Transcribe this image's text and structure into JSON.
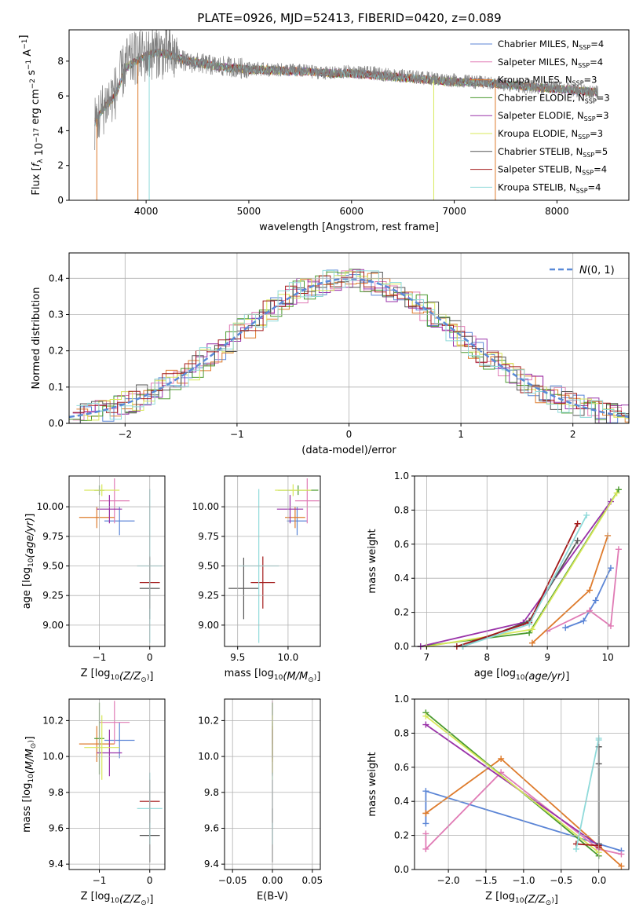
{
  "chart_data": [
    {
      "type": "line",
      "id": "spectrum",
      "title": "PLATE=0926, MJD=52413, FIBERID=0420, z=0.089",
      "xlabel": "wavelength [Angstrom, rest frame]",
      "ylabel": "Flux [f_λ 10^-17 erg cm^-2 s^-1 A^-1]",
      "xlim": [
        3250,
        8700
      ],
      "ylim": [
        0,
        9.8
      ],
      "xticks": [
        4000,
        5000,
        6000,
        7000,
        8000
      ],
      "yticks": [
        0,
        2,
        4,
        6,
        8
      ],
      "grid": false,
      "legend_position": "upper-right",
      "data_series": {
        "name": "",
        "color": "#808080",
        "x": [
          3500,
          3600,
          3700,
          3800,
          3900,
          4000,
          4100,
          4200,
          4300,
          4400,
          4500,
          4600,
          4700,
          4800,
          4900,
          5000,
          5200,
          5400,
          5600,
          5800,
          6000,
          6200,
          6400,
          6600,
          6800,
          7000,
          7200,
          7400,
          7600,
          7800,
          8000,
          8200,
          8400
        ],
        "y": [
          4.4,
          5.5,
          6.2,
          7.8,
          8.2,
          8.3,
          8.6,
          8.4,
          8.3,
          7.9,
          7.9,
          7.8,
          7.7,
          7.7,
          7.6,
          7.6,
          7.5,
          7.5,
          7.4,
          7.3,
          7.4,
          7.3,
          7.2,
          7.1,
          7.0,
          6.9,
          6.8,
          6.7,
          6.6,
          6.5,
          6.5,
          6.3,
          6.2
        ]
      },
      "model": {
        "x": [
          3500,
          3600,
          3700,
          3800,
          3900,
          4000,
          4100,
          4200,
          4300,
          4400,
          4500,
          4600,
          4700,
          4800,
          4900,
          5000,
          5200,
          5400,
          5600,
          5800,
          6000,
          6200,
          6400,
          6600,
          6800,
          7000,
          7200,
          7400,
          7600,
          7800,
          8000,
          8200,
          8400
        ],
        "y": [
          4.5,
          5.4,
          6.0,
          7.6,
          8.0,
          8.3,
          8.5,
          8.4,
          8.2,
          8.0,
          7.9,
          7.8,
          7.7,
          7.6,
          7.6,
          7.5,
          7.5,
          7.4,
          7.4,
          7.3,
          7.3,
          7.2,
          7.1,
          7.0,
          6.9,
          6.8,
          6.8,
          6.7,
          6.6,
          6.5,
          6.4,
          6.3,
          6.2
        ]
      },
      "legend": [
        {
          "label": "Chabrier MILES, N",
          "sub": "SSP",
          "suffix": "=4"
        },
        {
          "label": "Salpeter MILES, N",
          "sub": "SSP",
          "suffix": "=4"
        },
        {
          "label": "Kroupa MILES, N",
          "sub": "SSP",
          "suffix": "=3"
        },
        {
          "label": "Chabrier ELODIE, N",
          "sub": "SSP",
          "suffix": "=3"
        },
        {
          "label": "Salpeter ELODIE, N",
          "sub": "SSP",
          "suffix": "=3"
        },
        {
          "label": "Kroupa ELODIE, N",
          "sub": "SSP",
          "suffix": "=3"
        },
        {
          "label": "Chabrier STELIB, N",
          "sub": "SSP",
          "suffix": "=5"
        },
        {
          "label": "Salpeter STELIB, N",
          "sub": "SSP",
          "suffix": "=4"
        },
        {
          "label": "Kroupa STELIB, N",
          "sub": "SSP",
          "suffix": "=4"
        }
      ]
    },
    {
      "type": "line",
      "id": "residuals",
      "xlabel": "(data-model)/error",
      "ylabel": "Normed distribution",
      "xlim": [
        -2.5,
        2.5
      ],
      "ylim": [
        0,
        0.47
      ],
      "xticks": [
        -2,
        -1,
        0,
        1,
        2
      ],
      "yticks": [
        0.0,
        0.1,
        0.2,
        0.3,
        0.4
      ],
      "grid": true,
      "legend_position": "upper-right",
      "normal_curve": {
        "name": "N(0,1)",
        "mean": 0,
        "sigma": 1,
        "color": "#5a8ad8"
      }
    },
    {
      "type": "scatter",
      "id": "age-vs-Z",
      "xlabel": "Z [log10(Z/Z⊙)]",
      "ylabel": "age [log10(age/yr)]",
      "xlim": [
        -1.6,
        0.3
      ],
      "ylim": [
        8.82,
        10.26
      ],
      "xticks": [
        -1,
        0
      ],
      "yticks": [
        9.0,
        9.25,
        9.5,
        9.75,
        10.0
      ],
      "grid": true,
      "points": [
        {
          "model": "Chabrier MILES",
          "x": -0.6,
          "y": 9.88,
          "xerr": 0.3,
          "yerr": 0.12
        },
        {
          "model": "Salpeter MILES",
          "x": -0.7,
          "y": 10.05,
          "xerr": 0.3,
          "yerr": 0.19
        },
        {
          "model": "Kroupa MILES",
          "x": -1.05,
          "y": 9.91,
          "xerr": 0.35,
          "yerr": 0.09
        },
        {
          "model": "Chabrier ELODIE",
          "x": -1.0,
          "y": 10.14,
          "xerr": 0.1,
          "yerr": 0.04
        },
        {
          "model": "Salpeter ELODIE",
          "x": -0.8,
          "y": 9.98,
          "xerr": 0.25,
          "yerr": 0.12
        },
        {
          "model": "Kroupa ELODIE",
          "x": -0.95,
          "y": 10.14,
          "xerr": 0.35,
          "yerr": 0.05
        },
        {
          "model": "Chabrier STELIB",
          "x": 0.0,
          "y": 9.31,
          "xerr": 0.2,
          "yerr": 0.26
        },
        {
          "model": "Salpeter STELIB",
          "x": 0.0,
          "y": 9.36,
          "xerr": 0.2,
          "yerr": 0.22
        },
        {
          "model": "Kroupa STELIB",
          "x": 0.0,
          "y": 9.5,
          "xerr": 0.25,
          "yerr": 0.65
        }
      ]
    },
    {
      "type": "scatter",
      "id": "age-vs-mass",
      "xlabel": "mass [log10(M/M⊙)]",
      "ylabel": "",
      "xlim": [
        9.37,
        10.32
      ],
      "ylim": [
        8.82,
        10.26
      ],
      "xticks": [
        9.5,
        10.0
      ],
      "yticks": [
        9.0,
        9.25,
        9.5,
        9.75,
        10.0
      ],
      "grid": true,
      "points": [
        {
          "model": "Chabrier MILES",
          "x": 10.09,
          "y": 9.88,
          "xerr": 0.1,
          "yerr": 0.12
        },
        {
          "model": "Salpeter MILES",
          "x": 10.19,
          "y": 10.05,
          "xerr": 0.12,
          "yerr": 0.19
        },
        {
          "model": "Kroupa MILES",
          "x": 10.07,
          "y": 9.91,
          "xerr": 0.1,
          "yerr": 0.09
        },
        {
          "model": "Chabrier ELODIE",
          "x": 10.1,
          "y": 10.14,
          "xerr": 0.2,
          "yerr": 0.04
        },
        {
          "model": "Salpeter ELODIE",
          "x": 10.02,
          "y": 9.98,
          "xerr": 0.13,
          "yerr": 0.12
        },
        {
          "model": "Kroupa ELODIE",
          "x": 10.05,
          "y": 10.14,
          "xerr": 0.18,
          "yerr": 0.05
        },
        {
          "model": "Chabrier STELIB",
          "x": 9.56,
          "y": 9.31,
          "xerr": 0.15,
          "yerr": 0.26
        },
        {
          "model": "Salpeter STELIB",
          "x": 9.75,
          "y": 9.36,
          "xerr": 0.12,
          "yerr": 0.22
        },
        {
          "model": "Kroupa STELIB",
          "x": 9.71,
          "y": 9.5,
          "xerr": 0.2,
          "yerr": 0.65
        }
      ]
    },
    {
      "type": "line",
      "id": "mass-weight-vs-age",
      "xlabel": "age [log10(age/yr)]",
      "ylabel": "mass weight",
      "xlim": [
        6.8,
        10.35
      ],
      "ylim": [
        0.0,
        1.0
      ],
      "xticks": [
        7,
        8,
        9,
        10
      ],
      "yticks": [
        0.0,
        0.2,
        0.4,
        0.6,
        0.8,
        1.0
      ],
      "grid": true,
      "series": [
        {
          "model": "Chabrier MILES",
          "x": [
            9.3,
            9.6,
            9.8,
            10.05
          ],
          "y": [
            0.11,
            0.15,
            0.27,
            0.46
          ]
        },
        {
          "model": "Salpeter MILES",
          "x": [
            9.0,
            9.7,
            10.05,
            10.18
          ],
          "y": [
            0.09,
            0.21,
            0.12,
            0.57
          ]
        },
        {
          "model": "Kroupa MILES",
          "x": [
            8.75,
            9.7,
            10.0
          ],
          "y": [
            0.02,
            0.33,
            0.65
          ]
        },
        {
          "model": "Chabrier ELODIE",
          "x": [
            6.9,
            8.7,
            10.18
          ],
          "y": [
            0.0,
            0.08,
            0.92
          ]
        },
        {
          "model": "Salpeter ELODIE",
          "x": [
            6.9,
            8.6,
            10.05
          ],
          "y": [
            0.0,
            0.14,
            0.85
          ]
        },
        {
          "model": "Kroupa ELODIE",
          "x": [
            7.0,
            8.75,
            10.15
          ],
          "y": [
            0.0,
            0.1,
            0.9
          ]
        },
        {
          "model": "Chabrier STELIB",
          "x": [
            7.6,
            8.7,
            9.5
          ],
          "y": [
            0.0,
            0.15,
            0.62
          ]
        },
        {
          "model": "Salpeter STELIB",
          "x": [
            7.5,
            8.7,
            9.5
          ],
          "y": [
            0.0,
            0.14,
            0.72
          ]
        },
        {
          "model": "Kroupa STELIB",
          "x": [
            7.6,
            8.7,
            9.65
          ],
          "y": [
            0.0,
            0.13,
            0.77
          ]
        }
      ]
    },
    {
      "type": "scatter",
      "id": "mass-vs-Z",
      "xlabel": "Z [log10(Z/Z⊙)]",
      "ylabel": "mass [log10(M/M⊙)]",
      "xlim": [
        -1.6,
        0.3
      ],
      "ylim": [
        9.37,
        10.32
      ],
      "xticks": [
        -1,
        0
      ],
      "yticks": [
        9.4,
        9.6,
        9.8,
        10.0,
        10.2
      ],
      "grid": true,
      "points": [
        {
          "model": "Chabrier MILES",
          "x": -0.6,
          "y": 10.09,
          "xerr": 0.3,
          "yerr": 0.1
        },
        {
          "model": "Salpeter MILES",
          "x": -0.7,
          "y": 10.19,
          "xerr": 0.3,
          "yerr": 0.12
        },
        {
          "model": "Kroupa MILES",
          "x": -1.05,
          "y": 10.07,
          "xerr": 0.35,
          "yerr": 0.1
        },
        {
          "model": "Chabrier ELODIE",
          "x": -1.0,
          "y": 10.1,
          "xerr": 0.1,
          "yerr": 0.2
        },
        {
          "model": "Salpeter ELODIE",
          "x": -0.8,
          "y": 10.02,
          "xerr": 0.25,
          "yerr": 0.13
        },
        {
          "model": "Kroupa ELODIE",
          "x": -0.95,
          "y": 10.05,
          "xerr": 0.35,
          "yerr": 0.18
        },
        {
          "model": "Chabrier STELIB",
          "x": 0.0,
          "y": 9.56,
          "xerr": 0.2,
          "yerr": 0.15
        },
        {
          "model": "Salpeter STELIB",
          "x": 0.0,
          "y": 9.75,
          "xerr": 0.2,
          "yerr": 0.12
        },
        {
          "model": "Kroupa STELIB",
          "x": 0.0,
          "y": 9.71,
          "xerr": 0.25,
          "yerr": 0.2
        }
      ]
    },
    {
      "type": "scatter",
      "id": "mass-vs-ebv",
      "xlabel": "E(B-V)",
      "ylabel": "",
      "xlim": [
        -0.06,
        0.06
      ],
      "ylim": [
        9.37,
        10.32
      ],
      "xticks": [
        -0.05,
        0.0,
        0.05
      ],
      "xticklabels": [
        "−0.05",
        "0.00",
        "0.05"
      ],
      "yticks": [
        9.4,
        9.6,
        9.8,
        10.0,
        10.2
      ],
      "grid": true,
      "points": [
        {
          "model": "Chabrier MILES",
          "x": 0.0,
          "y": 10.09,
          "yerr": 0.1
        },
        {
          "model": "Salpeter MILES",
          "x": 0.0,
          "y": 10.19,
          "yerr": 0.12
        },
        {
          "model": "Kroupa MILES",
          "x": 0.0,
          "y": 10.07,
          "yerr": 0.1
        },
        {
          "model": "Chabrier ELODIE",
          "x": 0.0,
          "y": 10.1,
          "yerr": 0.2
        },
        {
          "model": "Salpeter ELODIE",
          "x": 0.0,
          "y": 10.02,
          "yerr": 0.13
        },
        {
          "model": "Kroupa ELODIE",
          "x": 0.0,
          "y": 10.05,
          "yerr": 0.18
        },
        {
          "model": "Chabrier STELIB",
          "x": 0.0,
          "y": 9.56,
          "yerr": 0.15
        },
        {
          "model": "Salpeter STELIB",
          "x": 0.0,
          "y": 9.75,
          "yerr": 0.12
        },
        {
          "model": "Kroupa STELIB",
          "x": 0.0,
          "y": 9.71,
          "yerr": 0.2
        }
      ]
    },
    {
      "type": "line",
      "id": "mass-weight-vs-Z",
      "xlabel": "Z [log10(Z/Z⊙)]",
      "ylabel": "mass weight",
      "xlim": [
        -2.45,
        0.4
      ],
      "ylim": [
        0.0,
        1.0
      ],
      "xticks": [
        -2.0,
        -1.5,
        -1.0,
        -0.5,
        0.0
      ],
      "xticklabels": [
        "−2.0",
        "−1.5",
        "−1.0",
        "−0.5",
        "0.0"
      ],
      "yticks": [
        0.0,
        0.2,
        0.4,
        0.6,
        0.8,
        1.0
      ],
      "grid": true,
      "series": [
        {
          "model": "Chabrier MILES",
          "x": [
            -2.3,
            -2.3,
            0.0,
            0.3
          ],
          "y": [
            0.27,
            0.46,
            0.15,
            0.11
          ]
        },
        {
          "model": "Salpeter MILES",
          "x": [
            -2.3,
            -2.3,
            -1.3,
            0.0,
            0.3
          ],
          "y": [
            0.21,
            0.12,
            0.57,
            0.12,
            0.09
          ]
        },
        {
          "model": "Kroupa MILES",
          "x": [
            -2.3,
            -2.3,
            -1.3,
            0.3
          ],
          "y": [
            0.33,
            0.33,
            0.65,
            0.02
          ]
        },
        {
          "model": "Chabrier ELODIE",
          "x": [
            -2.3,
            0.0
          ],
          "y": [
            0.92,
            0.08
          ]
        },
        {
          "model": "Salpeter ELODIE",
          "x": [
            -2.3,
            0.0
          ],
          "y": [
            0.85,
            0.14
          ]
        },
        {
          "model": "Kroupa ELODIE",
          "x": [
            -2.3,
            0.0
          ],
          "y": [
            0.9,
            0.1
          ]
        },
        {
          "model": "Chabrier STELIB",
          "x": [
            0.0,
            0.0,
            0.0
          ],
          "y": [
            0.62,
            0.72,
            0.15
          ]
        },
        {
          "model": "Salpeter STELIB",
          "x": [
            -0.3,
            0.0,
            0.0
          ],
          "y": [
            0.15,
            0.14,
            0.13
          ]
        },
        {
          "model": "Kroupa STELIB",
          "x": [
            -0.3,
            0.0,
            0.0
          ],
          "y": [
            0.12,
            0.77,
            0.76
          ]
        }
      ]
    }
  ],
  "models": [
    {
      "name": "Chabrier MILES",
      "color": "#5b85d6"
    },
    {
      "name": "Salpeter MILES",
      "color": "#e07bb5"
    },
    {
      "name": "Kroupa MILES",
      "color": "#de7b2c"
    },
    {
      "name": "Chabrier ELODIE",
      "color": "#4a9a2e"
    },
    {
      "name": "Salpeter ELODIE",
      "color": "#9932a8"
    },
    {
      "name": "Kroupa ELODIE",
      "color": "#d8e85a"
    },
    {
      "name": "Chabrier STELIB",
      "color": "#555555"
    },
    {
      "name": "Salpeter STELIB",
      "color": "#a31a1a"
    },
    {
      "name": "Kroupa STELIB",
      "color": "#8fdada"
    }
  ]
}
